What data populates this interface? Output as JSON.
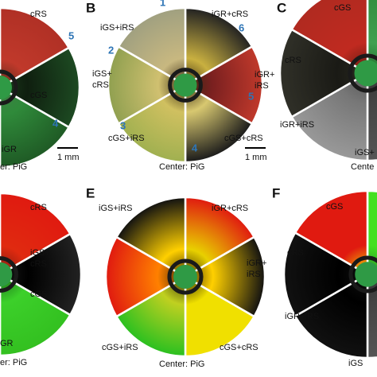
{
  "panel_a": {
    "sector_labels": [
      "cRS",
      "cGS",
      "iGR"
    ],
    "sector_numbers": [
      5,
      4
    ],
    "scale_bar": "1 mm",
    "center": "er: PiG"
  },
  "panel_b": {
    "letter": "B",
    "sector_labels": [
      "iGS+iRS",
      "iGR+cRS",
      [
        "iGS+",
        "cRS"
      ],
      [
        "iGR+",
        "iRS"
      ],
      "cGS+iRS",
      "cGS+cRS"
    ],
    "sector_numbers": [
      1,
      6,
      2,
      5,
      3,
      4
    ],
    "scale_bar": "1 mm",
    "center": "Center: PiG"
  },
  "panel_c": {
    "letter": "C",
    "sector_labels": [
      "cGS",
      "cRS",
      "iGR+iRS",
      "iGS+"
    ],
    "center": "Cente"
  },
  "panel_d": {
    "sector_labels": [
      "cRS",
      [
        "iGS+",
        "cRS"
      ],
      "cGS",
      "GR"
    ],
    "center": "er: PiG"
  },
  "panel_e": {
    "letter": "E",
    "sector_labels": [
      "iGS+iRS",
      "iGR+cRS",
      [
        "iGR+",
        "iRS"
      ],
      "cGS+iRS",
      "cGS+cRS"
    ],
    "center": "Center: PiG"
  },
  "panel_f": {
    "letter": "F",
    "sector_labels": [
      "cGS",
      "cRS",
      "iGR+iRS",
      "iGS"
    ]
  }
}
